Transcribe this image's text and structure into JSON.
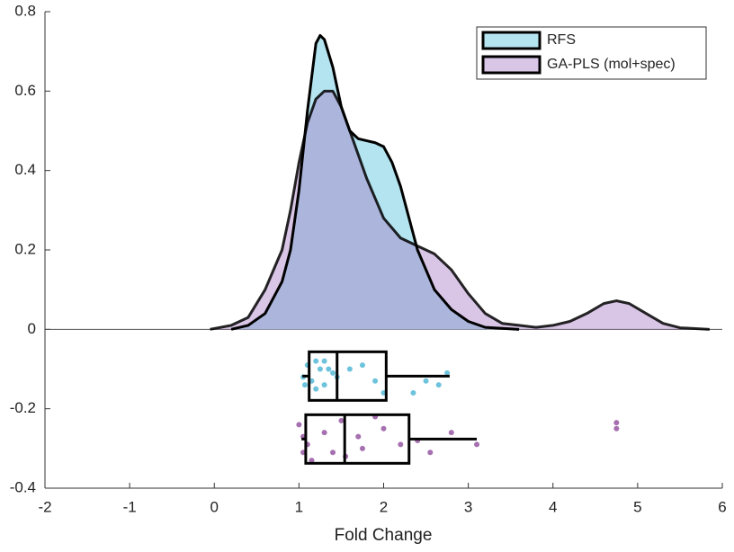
{
  "chart_data": {
    "type": "raincloud",
    "xlabel": "Fold Change",
    "xlim": [
      -2,
      6
    ],
    "ylim": [
      -0.4,
      0.8
    ],
    "xticks": [
      -2,
      -1,
      0,
      1,
      2,
      3,
      4,
      5,
      6
    ],
    "yticks": [
      -0.4,
      -0.2,
      0,
      0.2,
      0.4,
      0.6,
      0.8
    ],
    "legend": "upper right",
    "series": [
      {
        "name": "RFS",
        "color": "#b4e4ef",
        "point_color": "#6ec3dc",
        "density": {
          "x": [
            0.2,
            0.4,
            0.6,
            0.8,
            0.9,
            1.0,
            1.1,
            1.2,
            1.25,
            1.3,
            1.4,
            1.5,
            1.6,
            1.7,
            1.8,
            1.9,
            2.0,
            2.1,
            2.2,
            2.3,
            2.4,
            2.5,
            2.6,
            2.8,
            3.0,
            3.2,
            3.6
          ],
          "values": [
            0,
            0.01,
            0.04,
            0.12,
            0.2,
            0.35,
            0.55,
            0.72,
            0.74,
            0.73,
            0.66,
            0.56,
            0.5,
            0.48,
            0.475,
            0.47,
            0.46,
            0.42,
            0.36,
            0.28,
            0.2,
            0.15,
            0.1,
            0.05,
            0.02,
            0.005,
            0
          ]
        },
        "points": {
          "x": [
            1.1,
            1.05,
            1.07,
            1.2,
            1.25,
            1.3,
            1.35,
            1.15,
            1.2,
            1.3,
            1.45,
            1.6,
            1.75,
            1.9,
            2.0,
            2.35,
            2.65,
            2.75,
            2.5,
            1.4
          ],
          "values": [
            -0.09,
            -0.12,
            -0.14,
            -0.08,
            -0.1,
            -0.08,
            -0.1,
            -0.13,
            -0.15,
            -0.14,
            -0.12,
            -0.1,
            -0.09,
            -0.13,
            -0.16,
            -0.16,
            -0.14,
            -0.11,
            -0.13,
            -0.11
          ]
        },
        "box": {
          "whisker_low": 1.04,
          "q1": 1.12,
          "median": 1.45,
          "q3": 2.03,
          "whisker_high": 2.78
        }
      },
      {
        "name": "GA-PLS (mol+spec)",
        "color": "#a070c0",
        "point_color": "#a670b0",
        "density": {
          "x": [
            -0.05,
            0.2,
            0.4,
            0.6,
            0.8,
            0.9,
            1.0,
            1.1,
            1.2,
            1.3,
            1.4,
            1.5,
            1.6,
            1.7,
            1.8,
            1.9,
            2.0,
            2.2,
            2.4,
            2.6,
            2.8,
            3.0,
            3.2,
            3.4,
            3.6,
            3.8,
            4.0,
            4.2,
            4.4,
            4.6,
            4.75,
            4.9,
            5.1,
            5.3,
            5.5,
            5.85
          ],
          "values": [
            0,
            0.01,
            0.03,
            0.1,
            0.2,
            0.3,
            0.42,
            0.52,
            0.58,
            0.6,
            0.6,
            0.56,
            0.5,
            0.44,
            0.38,
            0.33,
            0.28,
            0.23,
            0.21,
            0.19,
            0.15,
            0.09,
            0.04,
            0.015,
            0.01,
            0.005,
            0.01,
            0.02,
            0.04,
            0.065,
            0.072,
            0.065,
            0.04,
            0.015,
            0.004,
            0
          ]
        },
        "points": {
          "x": [
            1.0,
            1.05,
            1.1,
            1.05,
            1.15,
            1.3,
            1.4,
            1.5,
            1.55,
            1.7,
            1.75,
            1.9,
            2.0,
            2.2,
            2.4,
            2.55,
            2.8,
            3.1,
            4.75,
            4.75
          ],
          "values": [
            -0.24,
            -0.27,
            -0.29,
            -0.31,
            -0.33,
            -0.26,
            -0.31,
            -0.23,
            -0.32,
            -0.27,
            -0.3,
            -0.22,
            -0.25,
            -0.29,
            -0.28,
            -0.31,
            -0.26,
            -0.29,
            -0.235,
            -0.25
          ]
        },
        "box": {
          "whisker_low": 1.03,
          "q1": 1.08,
          "median": 1.54,
          "q3": 2.3,
          "whisker_high": 3.1
        }
      }
    ]
  }
}
